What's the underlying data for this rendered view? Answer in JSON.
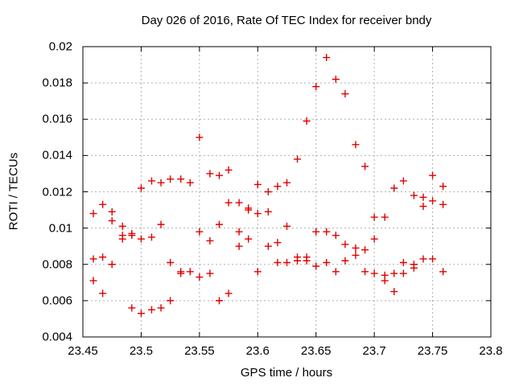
{
  "title": "Day 026 of 2016, Rate Of TEC Index for receiver bndy",
  "chart_data": {
    "type": "scatter",
    "title": "Day 026 of 2016, Rate Of TEC Index for receiver bndy",
    "xlabel": "GPS time / hours",
    "ylabel": "ROTI / TECUs",
    "xlim": [
      23.45,
      23.8
    ],
    "ylim": [
      0.004,
      0.02
    ],
    "x_ticks": [
      23.45,
      23.5,
      23.55,
      23.6,
      23.65,
      23.7,
      23.75,
      23.8
    ],
    "x_tick_labels": [
      "23.45",
      "23.5",
      "23.55",
      "23.6",
      "23.65",
      "23.7",
      "23.75",
      "23.8"
    ],
    "y_ticks": [
      0.004,
      0.006,
      0.008,
      0.01,
      0.012,
      0.014,
      0.016,
      0.018,
      0.02
    ],
    "y_tick_labels": [
      "0.004",
      "0.006",
      "0.008",
      "0.01",
      "0.012",
      "0.014",
      "0.016",
      "0.018",
      "0.02"
    ],
    "grid": true,
    "legend_position": "none",
    "marker": "plus",
    "marker_color": "#e00000",
    "grid_color": "#b0b0b0",
    "border_color": "#000000",
    "series": [
      {
        "name": "ROTI",
        "points": [
          [
            23.459,
            0.0108
          ],
          [
            23.459,
            0.0083
          ],
          [
            23.459,
            0.0071
          ],
          [
            23.467,
            0.0113
          ],
          [
            23.467,
            0.0084
          ],
          [
            23.467,
            0.0064
          ],
          [
            23.475,
            0.0109
          ],
          [
            23.475,
            0.0104
          ],
          [
            23.475,
            0.008
          ],
          [
            23.484,
            0.0101
          ],
          [
            23.484,
            0.0096
          ],
          [
            23.484,
            0.0094
          ],
          [
            23.492,
            0.0097
          ],
          [
            23.492,
            0.0096
          ],
          [
            23.492,
            0.0056
          ],
          [
            23.5,
            0.0122
          ],
          [
            23.5,
            0.0094
          ],
          [
            23.5,
            0.0053
          ],
          [
            23.509,
            0.0126
          ],
          [
            23.509,
            0.0095
          ],
          [
            23.509,
            0.0055
          ],
          [
            23.517,
            0.0125
          ],
          [
            23.517,
            0.0102
          ],
          [
            23.517,
            0.0056
          ],
          [
            23.525,
            0.0127
          ],
          [
            23.525,
            0.0081
          ],
          [
            23.525,
            0.006
          ],
          [
            23.534,
            0.0127
          ],
          [
            23.534,
            0.0076
          ],
          [
            23.534,
            0.0075
          ],
          [
            23.542,
            0.0125
          ],
          [
            23.542,
            0.0076
          ],
          [
            23.55,
            0.015
          ],
          [
            23.55,
            0.0098
          ],
          [
            23.55,
            0.0073
          ],
          [
            23.559,
            0.013
          ],
          [
            23.559,
            0.0093
          ],
          [
            23.559,
            0.0075
          ],
          [
            23.567,
            0.0129
          ],
          [
            23.567,
            0.0102
          ],
          [
            23.567,
            0.006
          ],
          [
            23.575,
            0.0132
          ],
          [
            23.575,
            0.0114
          ],
          [
            23.575,
            0.0064
          ],
          [
            23.584,
            0.0114
          ],
          [
            23.584,
            0.0098
          ],
          [
            23.584,
            0.009
          ],
          [
            23.592,
            0.0111
          ],
          [
            23.592,
            0.011
          ],
          [
            23.592,
            0.0094
          ],
          [
            23.6,
            0.0124
          ],
          [
            23.6,
            0.0108
          ],
          [
            23.6,
            0.0076
          ],
          [
            23.609,
            0.012
          ],
          [
            23.609,
            0.0109
          ],
          [
            23.609,
            0.009
          ],
          [
            23.617,
            0.0123
          ],
          [
            23.617,
            0.0092
          ],
          [
            23.617,
            0.0081
          ],
          [
            23.625,
            0.0125
          ],
          [
            23.625,
            0.0101
          ],
          [
            23.625,
            0.0081
          ],
          [
            23.634,
            0.0138
          ],
          [
            23.634,
            0.0084
          ],
          [
            23.634,
            0.0082
          ],
          [
            23.642,
            0.0159
          ],
          [
            23.642,
            0.0084
          ],
          [
            23.642,
            0.0082
          ],
          [
            23.65,
            0.0178
          ],
          [
            23.65,
            0.0098
          ],
          [
            23.65,
            0.0079
          ],
          [
            23.659,
            0.0194
          ],
          [
            23.659,
            0.0098
          ],
          [
            23.659,
            0.0081
          ],
          [
            23.667,
            0.0182
          ],
          [
            23.667,
            0.0096
          ],
          [
            23.667,
            0.0076
          ],
          [
            23.675,
            0.0174
          ],
          [
            23.675,
            0.0091
          ],
          [
            23.675,
            0.0082
          ],
          [
            23.684,
            0.0146
          ],
          [
            23.684,
            0.0089
          ],
          [
            23.684,
            0.0085
          ],
          [
            23.692,
            0.0134
          ],
          [
            23.692,
            0.0088
          ],
          [
            23.692,
            0.0076
          ],
          [
            23.7,
            0.0106
          ],
          [
            23.7,
            0.0094
          ],
          [
            23.7,
            0.0075
          ],
          [
            23.709,
            0.0106
          ],
          [
            23.709,
            0.0074
          ],
          [
            23.709,
            0.0071
          ],
          [
            23.717,
            0.0122
          ],
          [
            23.717,
            0.0075
          ],
          [
            23.717,
            0.0065
          ],
          [
            23.725,
            0.0126
          ],
          [
            23.725,
            0.0081
          ],
          [
            23.725,
            0.0075
          ],
          [
            23.734,
            0.0118
          ],
          [
            23.734,
            0.008
          ],
          [
            23.734,
            0.0078
          ],
          [
            23.742,
            0.0117
          ],
          [
            23.742,
            0.0112
          ],
          [
            23.742,
            0.0083
          ],
          [
            23.75,
            0.0129
          ],
          [
            23.75,
            0.0115
          ],
          [
            23.75,
            0.0083
          ],
          [
            23.759,
            0.0123
          ],
          [
            23.759,
            0.0113
          ],
          [
            23.759,
            0.0076
          ]
        ]
      }
    ]
  }
}
